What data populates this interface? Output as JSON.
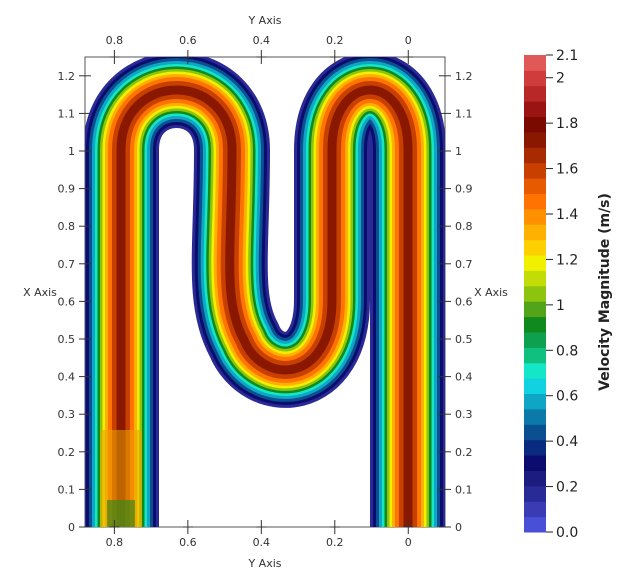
{
  "chart_data": {
    "type": "heatmap",
    "plot_type": "contour-field",
    "axes": {
      "top_title": "Y Axis",
      "bottom_title": "Y Axis",
      "left_title": "X Axis",
      "right_title": "X Axis",
      "y_axis_range": [
        0.88,
        -0.1
      ],
      "y_axis_ticks": [
        "0.8",
        "0.6",
        "0.4",
        "0.2",
        "0"
      ],
      "y_axis_tick_values": [
        0.8,
        0.6,
        0.4,
        0.2,
        0.0
      ],
      "x_axis_range": [
        0,
        1.25
      ],
      "x_axis_ticks": [
        "0",
        "0.1",
        "0.2",
        "0.3",
        "0.4",
        "0.5",
        "0.6",
        "0.7",
        "0.8",
        "0.9",
        "1",
        "1.1",
        "1.2"
      ],
      "x_axis_tick_values": [
        0,
        0.1,
        0.2,
        0.3,
        0.4,
        0.5,
        0.6,
        0.7,
        0.8,
        0.9,
        1.0,
        1.1,
        1.2
      ]
    },
    "colorbar": {
      "title": "Velocity Magnitude (m/s)",
      "min": 0.0,
      "max": 2.1,
      "labels": [
        "2.1",
        "2",
        "1.8",
        "1.6",
        "1.4",
        "1.2",
        "1",
        "0.8",
        "0.6",
        "0.4",
        "0.2",
        "0.0"
      ],
      "label_values": [
        2.1,
        2.0,
        1.8,
        1.6,
        1.4,
        1.2,
        1.0,
        0.8,
        0.6,
        0.4,
        0.2,
        0.0
      ],
      "colors_bottom_to_top": [
        "#4a4fd8",
        "#3a3cb4",
        "#2a2a96",
        "#1c1c80",
        "#0c0c6e",
        "#0a2a80",
        "#0a5090",
        "#0b7aa8",
        "#0fa6c6",
        "#10d2e0",
        "#14e6c8",
        "#10c07e",
        "#0ea04e",
        "#108a1c",
        "#52a418",
        "#8cc410",
        "#c2dc08",
        "#f0f000",
        "#ffd000",
        "#ffb000",
        "#ff9000",
        "#ff7400",
        "#e85a00",
        "#c84000",
        "#a82a00",
        "#8a1800",
        "#7a0a00",
        "#9a1414",
        "#b82828",
        "#d03c3c",
        "#e05858"
      ]
    },
    "field": {
      "channel": "serpentine M-shaped channel",
      "inlet_region_value": 1.1,
      "peak_value": 1.85,
      "wall_value": 0.0
    }
  }
}
